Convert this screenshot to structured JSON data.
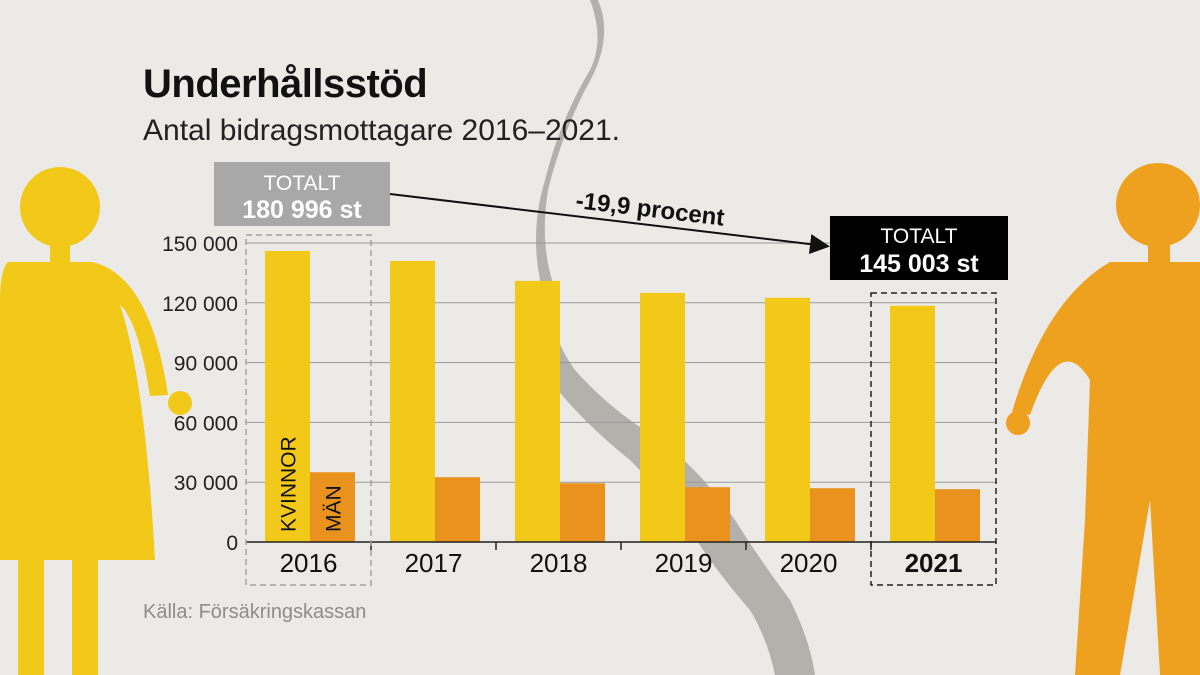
{
  "title": "Underhållsstöd",
  "subtitle": "Antal bidragsmottagare 2016–2021.",
  "source": "Källa: Försäkringskassan",
  "callouts": {
    "start": {
      "label": "TOTALT",
      "value": "180 996 st"
    },
    "end": {
      "label": "TOTALT",
      "value": "145 003 st"
    },
    "change": "-19,9 procent"
  },
  "colors": {
    "women": "#f2c919",
    "men": "#e9921e",
    "figure_left": "#f2c919",
    "figure_right": "#eea01f",
    "background": "#ebeae7",
    "start_box": "#a8a8a8",
    "end_box": "#000000",
    "crack": "#a5a39e"
  },
  "chart_data": {
    "type": "bar",
    "categories": [
      "2016",
      "2017",
      "2018",
      "2019",
      "2020",
      "2021"
    ],
    "series": [
      {
        "name": "KVINNOR",
        "values": [
          146000,
          141000,
          131000,
          125000,
          122500,
          118500
        ]
      },
      {
        "name": "MÄN",
        "values": [
          35000,
          32500,
          29500,
          27500,
          27000,
          26500
        ]
      }
    ],
    "ylim": [
      0,
      150000
    ],
    "yticks": [
      0,
      30000,
      60000,
      90000,
      120000,
      150000
    ],
    "ytick_labels": [
      "0",
      "30 000",
      "60 000",
      "90 000",
      "120 000",
      "150 000"
    ],
    "highlight_first": "2016",
    "highlight_last": "2021",
    "grid": true,
    "legend": "inside-first-group"
  }
}
